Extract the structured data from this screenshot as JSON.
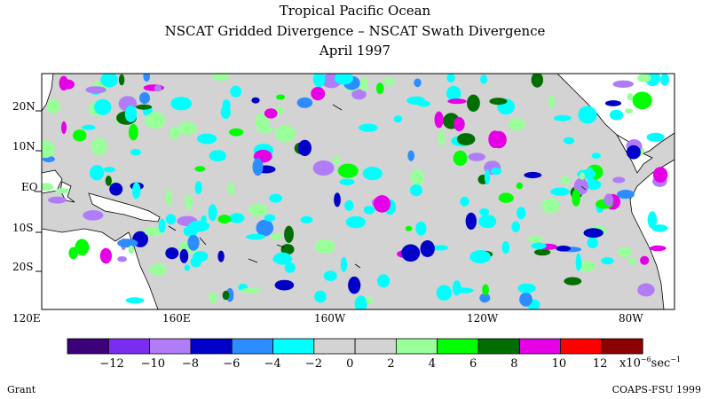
{
  "title": {
    "line1": "Tropical Pacific Ocean",
    "line2": "NSCAT Gridded Divergence – NSCAT Swath Divergence",
    "line3": "April 1997"
  },
  "map": {
    "lat_labels": [
      "20N",
      "10N",
      "EQ",
      "10S",
      "20S"
    ],
    "lon_labels": [
      "120E",
      "160E",
      "160W",
      "120W",
      "80W"
    ],
    "ocean_color": "#d3d3d3",
    "land_color": "#ffffff"
  },
  "legend": {
    "bins": [
      {
        "min": -14,
        "max": -12,
        "color": "#3c0078"
      },
      {
        "min": -12,
        "max": -10,
        "color": "#7a2cf0"
      },
      {
        "min": -10,
        "max": -8,
        "color": "#b07cf8"
      },
      {
        "min": -8,
        "max": -6,
        "color": "#0000c8"
      },
      {
        "min": -6,
        "max": -4,
        "color": "#2d8cff"
      },
      {
        "min": -4,
        "max": -2,
        "color": "#00ffff"
      },
      {
        "min": -2,
        "max": 0,
        "color": "#d3d3d3"
      },
      {
        "min": 0,
        "max": 2,
        "color": "#d3d3d3"
      },
      {
        "min": 2,
        "max": 4,
        "color": "#99ff99"
      },
      {
        "min": 4,
        "max": 6,
        "color": "#00ff00"
      },
      {
        "min": 6,
        "max": 8,
        "color": "#006e00"
      },
      {
        "min": 8,
        "max": 10,
        "color": "#e600e6"
      },
      {
        "min": 10,
        "max": 12,
        "color": "#ff0000"
      },
      {
        "min": 12,
        "max": 14,
        "color": "#8b0000"
      }
    ],
    "tick_labels": [
      "−12",
      "−10",
      "−8",
      "−6",
      "−4",
      "−2",
      "0",
      "2",
      "4",
      "6",
      "8",
      "10",
      "12"
    ],
    "unit_prefix": "x10",
    "unit_exponent": "−6",
    "unit_suffix": "sec",
    "unit_suffix_exponent": "−1"
  },
  "footer": {
    "left": "Grant",
    "right": "COAPS-FSU 1999"
  }
}
